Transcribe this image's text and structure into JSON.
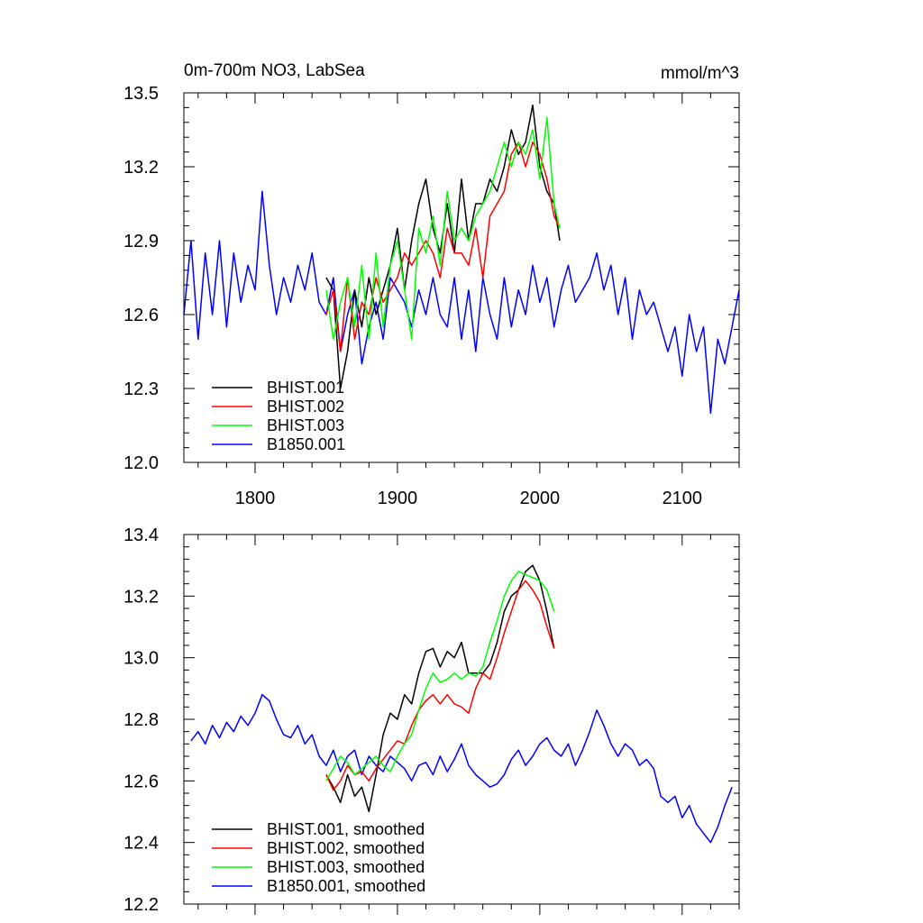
{
  "chart_data": [
    {
      "type": "line",
      "title": "0m-700m NO3, LabSea",
      "units": "mmol/m^3",
      "xlim": [
        1750,
        2140
      ],
      "ylim": [
        12.0,
        13.5
      ],
      "x_ticks": [
        "1800",
        "1900",
        "2000",
        "2100"
      ],
      "y_ticks": [
        "12.0",
        "12.3",
        "12.6",
        "12.9",
        "13.2",
        "13.5"
      ],
      "legend_position": "bottom-left",
      "series": [
        {
          "name": "BHIST.001",
          "color": "#000000",
          "x": [
            1850,
            1855,
            1860,
            1865,
            1870,
            1875,
            1880,
            1885,
            1890,
            1895,
            1900,
            1905,
            1910,
            1915,
            1920,
            1925,
            1930,
            1935,
            1940,
            1945,
            1950,
            1955,
            1960,
            1965,
            1970,
            1975,
            1980,
            1985,
            1990,
            1995,
            2000,
            2005,
            2010,
            2014
          ],
          "y": [
            12.75,
            12.7,
            12.3,
            12.45,
            12.7,
            12.55,
            12.75,
            12.6,
            12.7,
            12.8,
            12.95,
            12.7,
            12.9,
            13.05,
            13.15,
            12.95,
            12.85,
            13.05,
            12.85,
            13.15,
            12.9,
            13.05,
            13.05,
            13.15,
            13.1,
            13.2,
            13.35,
            13.25,
            13.3,
            13.45,
            13.2,
            13.1,
            13.05,
            12.9
          ]
        },
        {
          "name": "BHIST.002",
          "color": "#ff0000",
          "x": [
            1850,
            1855,
            1860,
            1865,
            1870,
            1875,
            1880,
            1885,
            1890,
            1895,
            1900,
            1905,
            1910,
            1915,
            1920,
            1925,
            1930,
            1935,
            1940,
            1945,
            1950,
            1955,
            1960,
            1965,
            1970,
            1975,
            1980,
            1985,
            1990,
            1995,
            2000,
            2005,
            2010,
            2014
          ],
          "y": [
            12.6,
            12.7,
            12.45,
            12.75,
            12.5,
            12.65,
            12.6,
            12.75,
            12.65,
            12.7,
            12.75,
            12.85,
            12.8,
            12.85,
            12.9,
            12.85,
            12.75,
            12.95,
            12.85,
            12.85,
            12.8,
            12.95,
            12.75,
            13.0,
            13.05,
            13.1,
            13.25,
            13.3,
            13.2,
            13.3,
            13.25,
            13.15,
            13.0,
            12.95
          ]
        },
        {
          "name": "BHIST.003",
          "color": "#00ff00",
          "x": [
            1850,
            1855,
            1860,
            1865,
            1870,
            1875,
            1880,
            1885,
            1890,
            1895,
            1900,
            1905,
            1910,
            1915,
            1920,
            1925,
            1930,
            1935,
            1940,
            1945,
            1950,
            1955,
            1960,
            1965,
            1970,
            1975,
            1980,
            1985,
            1990,
            1995,
            2000,
            2005,
            2010,
            2014
          ],
          "y": [
            12.7,
            12.5,
            12.65,
            12.75,
            12.55,
            12.8,
            12.5,
            12.85,
            12.55,
            12.8,
            12.9,
            12.7,
            12.5,
            12.95,
            12.85,
            13.0,
            12.8,
            13.1,
            12.9,
            12.95,
            12.9,
            13.0,
            13.05,
            13.1,
            13.2,
            13.3,
            13.2,
            13.3,
            13.25,
            13.35,
            13.15,
            13.4,
            13.05,
            12.95
          ]
        },
        {
          "name": "B1850.001",
          "color": "#0000ff",
          "x": [
            1750,
            1755,
            1760,
            1765,
            1770,
            1775,
            1780,
            1785,
            1790,
            1795,
            1800,
            1805,
            1810,
            1815,
            1820,
            1825,
            1830,
            1835,
            1840,
            1845,
            1850,
            1855,
            1860,
            1865,
            1870,
            1875,
            1880,
            1885,
            1890,
            1895,
            1900,
            1905,
            1910,
            1915,
            1920,
            1925,
            1930,
            1935,
            1940,
            1945,
            1950,
            1955,
            1960,
            1965,
            1970,
            1975,
            1980,
            1985,
            1990,
            1995,
            2000,
            2005,
            2010,
            2015,
            2020,
            2025,
            2030,
            2035,
            2040,
            2045,
            2050,
            2055,
            2060,
            2065,
            2070,
            2075,
            2080,
            2085,
            2090,
            2095,
            2100,
            2105,
            2110,
            2115,
            2120,
            2125,
            2130,
            2135,
            2140
          ],
          "y": [
            12.6,
            12.9,
            12.5,
            12.85,
            12.6,
            12.9,
            12.55,
            12.85,
            12.65,
            12.8,
            12.7,
            13.1,
            12.8,
            12.6,
            12.75,
            12.65,
            12.8,
            12.7,
            12.85,
            12.65,
            12.6,
            12.75,
            12.45,
            12.6,
            12.7,
            12.4,
            12.55,
            12.65,
            12.5,
            12.75,
            12.7,
            12.65,
            12.55,
            12.7,
            12.6,
            12.75,
            12.6,
            12.55,
            12.75,
            12.5,
            12.7,
            12.45,
            12.75,
            12.6,
            12.5,
            12.75,
            12.55,
            12.7,
            12.6,
            12.8,
            12.65,
            12.75,
            12.55,
            12.7,
            12.8,
            12.65,
            12.7,
            12.75,
            12.85,
            12.7,
            12.8,
            12.6,
            12.75,
            12.5,
            12.7,
            12.6,
            12.65,
            12.55,
            12.45,
            12.55,
            12.35,
            12.6,
            12.45,
            12.55,
            12.2,
            12.5,
            12.4,
            12.55,
            12.7
          ]
        }
      ]
    },
    {
      "type": "line",
      "title": "",
      "xlim": [
        1750,
        2140
      ],
      "ylim": [
        12.2,
        13.4
      ],
      "y_ticks": [
        "12.2",
        "12.4",
        "12.6",
        "12.8",
        "13.0",
        "13.2",
        "13.4"
      ],
      "legend_position": "bottom-left",
      "series": [
        {
          "name": "BHIST.001, smoothed",
          "color": "#000000",
          "x": [
            1850,
            1855,
            1860,
            1865,
            1870,
            1875,
            1880,
            1885,
            1890,
            1895,
            1900,
            1905,
            1910,
            1915,
            1920,
            1925,
            1930,
            1935,
            1940,
            1945,
            1950,
            1955,
            1960,
            1965,
            1970,
            1975,
            1980,
            1985,
            1990,
            1995,
            2000,
            2005,
            2010
          ],
          "y": [
            12.62,
            12.58,
            12.53,
            12.62,
            12.55,
            12.58,
            12.5,
            12.62,
            12.75,
            12.82,
            12.8,
            12.88,
            12.85,
            12.95,
            13.02,
            13.03,
            12.97,
            13.02,
            13.0,
            13.05,
            12.95,
            12.95,
            12.95,
            12.98,
            13.05,
            13.15,
            13.2,
            13.22,
            13.28,
            13.3,
            13.25,
            13.15,
            13.03
          ]
        },
        {
          "name": "BHIST.002, smoothed",
          "color": "#ff0000",
          "x": [
            1850,
            1855,
            1860,
            1865,
            1870,
            1875,
            1880,
            1885,
            1890,
            1895,
            1900,
            1905,
            1910,
            1915,
            1920,
            1925,
            1930,
            1935,
            1940,
            1945,
            1950,
            1955,
            1960,
            1965,
            1970,
            1975,
            1980,
            1985,
            1990,
            1995,
            2000,
            2005,
            2010
          ],
          "y": [
            12.62,
            12.57,
            12.6,
            12.65,
            12.62,
            12.63,
            12.6,
            12.64,
            12.67,
            12.7,
            12.73,
            12.72,
            12.78,
            12.83,
            12.86,
            12.88,
            12.85,
            12.88,
            12.85,
            12.84,
            12.82,
            12.9,
            12.95,
            12.93,
            13.0,
            13.08,
            13.15,
            13.22,
            13.25,
            13.22,
            13.18,
            13.1,
            13.03
          ]
        },
        {
          "name": "BHIST.003, smoothed",
          "color": "#00ff00",
          "x": [
            1850,
            1855,
            1860,
            1865,
            1870,
            1875,
            1880,
            1885,
            1890,
            1895,
            1900,
            1905,
            1910,
            1915,
            1920,
            1925,
            1930,
            1935,
            1940,
            1945,
            1950,
            1955,
            1960,
            1965,
            1970,
            1975,
            1980,
            1985,
            1990,
            1995,
            2000,
            2005,
            2010
          ],
          "y": [
            12.6,
            12.64,
            12.68,
            12.66,
            12.62,
            12.64,
            12.66,
            12.68,
            12.65,
            12.63,
            12.68,
            12.72,
            12.75,
            12.83,
            12.9,
            12.95,
            12.92,
            12.93,
            12.95,
            12.93,
            12.95,
            12.94,
            12.97,
            13.05,
            13.12,
            13.2,
            13.25,
            13.28,
            13.27,
            13.26,
            13.25,
            13.22,
            13.15
          ]
        },
        {
          "name": "B1850.001, smoothed",
          "color": "#0000ff",
          "x": [
            1755,
            1760,
            1765,
            1770,
            1775,
            1780,
            1785,
            1790,
            1795,
            1800,
            1805,
            1810,
            1815,
            1820,
            1825,
            1830,
            1835,
            1840,
            1845,
            1850,
            1855,
            1860,
            1865,
            1870,
            1875,
            1880,
            1885,
            1890,
            1895,
            1900,
            1905,
            1910,
            1915,
            1920,
            1925,
            1930,
            1935,
            1940,
            1945,
            1950,
            1955,
            1960,
            1965,
            1970,
            1975,
            1980,
            1985,
            1990,
            1995,
            2000,
            2005,
            2010,
            2015,
            2020,
            2025,
            2030,
            2035,
            2040,
            2045,
            2050,
            2055,
            2060,
            2065,
            2070,
            2075,
            2080,
            2085,
            2090,
            2095,
            2100,
            2105,
            2110,
            2115,
            2120,
            2125,
            2130,
            2135
          ],
          "y": [
            12.73,
            12.76,
            12.72,
            12.78,
            12.74,
            12.79,
            12.76,
            12.81,
            12.78,
            12.82,
            12.88,
            12.86,
            12.8,
            12.75,
            12.74,
            12.78,
            12.72,
            12.75,
            12.68,
            12.65,
            12.7,
            12.63,
            12.68,
            12.7,
            12.62,
            12.68,
            12.65,
            12.63,
            12.68,
            12.66,
            12.64,
            12.6,
            12.65,
            12.66,
            12.62,
            12.68,
            12.63,
            12.67,
            12.72,
            12.65,
            12.62,
            12.6,
            12.58,
            12.59,
            12.62,
            12.67,
            12.7,
            12.65,
            12.68,
            12.72,
            12.74,
            12.7,
            12.68,
            12.72,
            12.65,
            12.7,
            12.76,
            12.83,
            12.78,
            12.72,
            12.68,
            12.72,
            12.7,
            12.65,
            12.67,
            12.64,
            12.55,
            12.53,
            12.55,
            12.48,
            12.52,
            12.46,
            12.43,
            12.4,
            12.45,
            12.52,
            12.58
          ]
        }
      ]
    }
  ]
}
